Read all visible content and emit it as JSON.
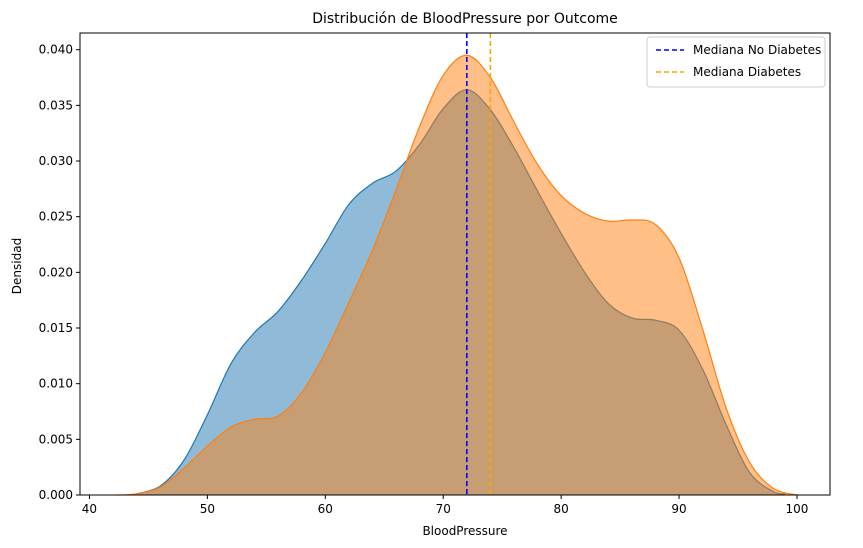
{
  "chart_data": {
    "type": "area",
    "title": "Distribución de BloodPressure por Outcome",
    "xlabel": "BloodPressure",
    "ylabel": "Densidad",
    "xlim": [
      39.2,
      102.8
    ],
    "ylim": [
      0,
      0.0415
    ],
    "xticks": [
      40,
      50,
      60,
      70,
      80,
      90,
      100
    ],
    "yticks": [
      0.0,
      0.005,
      0.01,
      0.015,
      0.02,
      0.025,
      0.03,
      0.035,
      0.04
    ],
    "ytick_labels": [
      "0.000",
      "0.005",
      "0.010",
      "0.015",
      "0.020",
      "0.025",
      "0.030",
      "0.035",
      "0.040"
    ],
    "legend_position": "top-right",
    "series": [
      {
        "color": "#1f77b4",
        "x": [
          44,
          46,
          48,
          50,
          52,
          54,
          56,
          58,
          60,
          62,
          64,
          66,
          68,
          70,
          72,
          74,
          76,
          78,
          80,
          82,
          84,
          86,
          88,
          90,
          92,
          94,
          96,
          98,
          99
        ],
        "y": [
          0.0001,
          0.0008,
          0.0031,
          0.0072,
          0.0118,
          0.0146,
          0.0165,
          0.0193,
          0.0226,
          0.0261,
          0.028,
          0.0291,
          0.0315,
          0.0347,
          0.0364,
          0.0346,
          0.0312,
          0.0273,
          0.0235,
          0.02,
          0.0172,
          0.0159,
          0.0157,
          0.0148,
          0.0113,
          0.0063,
          0.002,
          0.0003,
          0.0001
        ]
      },
      {
        "color": "#ff7f0e",
        "x": [
          42.3,
          44,
          46,
          48,
          50,
          52,
          54,
          56,
          58,
          60,
          62,
          64,
          66,
          68,
          70,
          72,
          74,
          76,
          78,
          80,
          82,
          84,
          86,
          88,
          90,
          92,
          94,
          96,
          98,
          100
        ],
        "y": [
          0.0,
          0.0001,
          0.0007,
          0.0024,
          0.0044,
          0.0061,
          0.0068,
          0.0071,
          0.0092,
          0.0128,
          0.0173,
          0.022,
          0.0274,
          0.0331,
          0.0377,
          0.0395,
          0.0375,
          0.0335,
          0.0297,
          0.0269,
          0.0253,
          0.0246,
          0.0247,
          0.0243,
          0.0213,
          0.0149,
          0.0078,
          0.0029,
          0.0006,
          0.0
        ]
      }
    ],
    "vlines": [
      {
        "label": "Mediana No Diabetes",
        "x": 72,
        "color": "#0000ff",
        "style": "dashed"
      },
      {
        "label": "Mediana Diabetes",
        "x": 74,
        "color": "#ffa500",
        "style": "dashed"
      }
    ]
  }
}
